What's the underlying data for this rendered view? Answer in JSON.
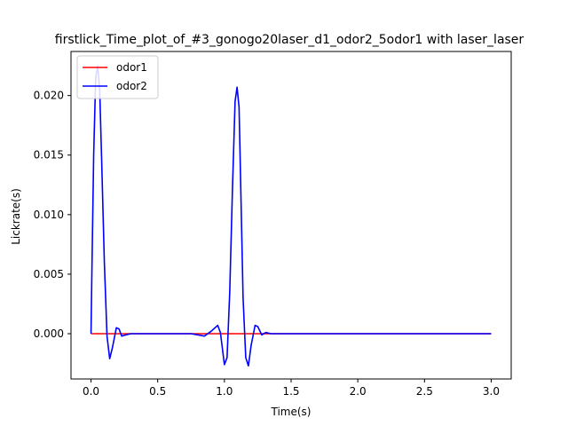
{
  "chart_data": {
    "type": "line",
    "title": "firstlick_Time_plot_of_#3_gonogo20laser_d1_odor2_5odor1 with laser_laser",
    "xlabel": "Time(s)",
    "ylabel": "Lickrate(s)",
    "xlim": [
      -0.15,
      3.15
    ],
    "ylim": [
      -0.0038,
      0.0237
    ],
    "xticks": [
      0.0,
      0.5,
      1.0,
      1.5,
      2.0,
      2.5,
      3.0
    ],
    "xtick_labels": [
      "0.0",
      "0.5",
      "1.0",
      "1.5",
      "2.0",
      "2.5",
      "3.0"
    ],
    "yticks": [
      0.0,
      0.005,
      0.01,
      0.015,
      0.02
    ],
    "ytick_labels": [
      "0.000",
      "0.005",
      "0.010",
      "0.015",
      "0.020"
    ],
    "grid": false,
    "legend_position": "upper-left",
    "series": [
      {
        "name": "odor1",
        "color": "#ff0000",
        "x": [
          0.0,
          3.0
        ],
        "y": [
          0.0,
          0.0
        ]
      },
      {
        "name": "odor2",
        "color": "#0000ff",
        "x": [
          0.0,
          0.005,
          0.02,
          0.035,
          0.05,
          0.065,
          0.08,
          0.1,
          0.12,
          0.14,
          0.16,
          0.19,
          0.21,
          0.23,
          0.26,
          0.3,
          0.35,
          0.5,
          0.75,
          0.85,
          0.9,
          0.95,
          0.97,
          1.0,
          1.02,
          1.04,
          1.06,
          1.08,
          1.095,
          1.11,
          1.125,
          1.14,
          1.16,
          1.18,
          1.2,
          1.23,
          1.25,
          1.28,
          1.31,
          1.35,
          1.4,
          1.5,
          2.0,
          2.5,
          3.0
        ],
        "y": [
          0.0,
          0.004,
          0.015,
          0.0215,
          0.0225,
          0.0205,
          0.0145,
          0.006,
          -0.0002,
          -0.0021,
          -0.0012,
          0.0005,
          0.0004,
          -0.0002,
          -0.0001,
          0.0,
          0.0,
          0.0,
          0.0,
          -0.0002,
          0.0002,
          0.0007,
          0.0001,
          -0.0026,
          -0.002,
          0.0035,
          0.012,
          0.0195,
          0.0207,
          0.019,
          0.011,
          0.003,
          -0.002,
          -0.0027,
          -0.001,
          0.0007,
          0.0006,
          -0.0001,
          0.0001,
          0.0,
          0.0,
          0.0,
          0.0,
          0.0,
          0.0
        ]
      }
    ]
  }
}
